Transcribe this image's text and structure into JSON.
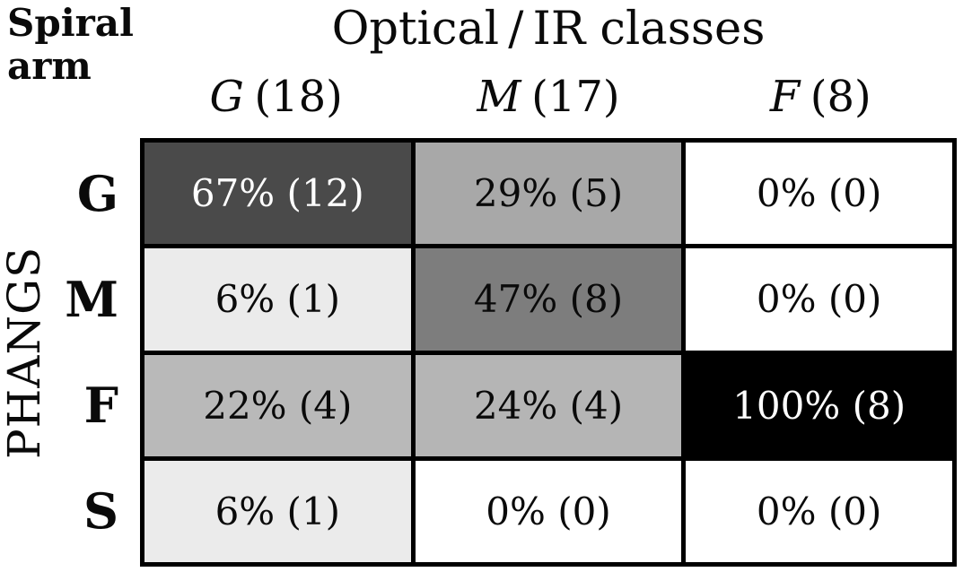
{
  "chart_data": {
    "type": "heatmap",
    "corner_label": "Spiral arm",
    "col_axis_title": "Optical / IR classes",
    "row_axis_title": "PHANGS",
    "columns": [
      {
        "letter": "G",
        "count_label": "(18)",
        "label": "G (18)",
        "total": 18
      },
      {
        "letter": "M",
        "count_label": "(17)",
        "label": "M (17)",
        "total": 17
      },
      {
        "letter": "F",
        "count_label": "(8)",
        "label": "F (8)",
        "total": 8
      }
    ],
    "rows": [
      {
        "label": "G"
      },
      {
        "label": "M"
      },
      {
        "label": "F"
      },
      {
        "label": "S"
      }
    ],
    "values_percent": [
      [
        67,
        29,
        0
      ],
      [
        6,
        47,
        0
      ],
      [
        22,
        24,
        100
      ],
      [
        6,
        0,
        0
      ]
    ],
    "counts": [
      [
        12,
        5,
        0
      ],
      [
        1,
        8,
        0
      ],
      [
        4,
        4,
        8
      ],
      [
        1,
        0,
        0
      ]
    ],
    "cells": [
      [
        {
          "label": "67% (12)",
          "percent": 67,
          "count": 12,
          "bg": "#4a4a4a",
          "fg": "#ffffff"
        },
        {
          "label": "29% (5)",
          "percent": 29,
          "count": 5,
          "bg": "#a8a8a8",
          "fg": "#0a0a0a"
        },
        {
          "label": "0% (0)",
          "percent": 0,
          "count": 0,
          "bg": "#ffffff",
          "fg": "#0a0a0a"
        }
      ],
      [
        {
          "label": "6% (1)",
          "percent": 6,
          "count": 1,
          "bg": "#ebebeb",
          "fg": "#0a0a0a"
        },
        {
          "label": "47% (8)",
          "percent": 47,
          "count": 8,
          "bg": "#7d7d7d",
          "fg": "#0a0a0a"
        },
        {
          "label": "0% (0)",
          "percent": 0,
          "count": 0,
          "bg": "#ffffff",
          "fg": "#0a0a0a"
        }
      ],
      [
        {
          "label": "22% (4)",
          "percent": 22,
          "count": 4,
          "bg": "#b9b9b9",
          "fg": "#0a0a0a"
        },
        {
          "label": "24% (4)",
          "percent": 24,
          "count": 4,
          "bg": "#b5b5b5",
          "fg": "#0a0a0a"
        },
        {
          "label": "100% (8)",
          "percent": 100,
          "count": 8,
          "bg": "#000000",
          "fg": "#ffffff"
        }
      ],
      [
        {
          "label": "6% (1)",
          "percent": 6,
          "count": 1,
          "bg": "#ebebeb",
          "fg": "#0a0a0a"
        },
        {
          "label": "0% (0)",
          "percent": 0,
          "count": 0,
          "bg": "#ffffff",
          "fg": "#0a0a0a"
        },
        {
          "label": "0% (0)",
          "percent": 0,
          "count": 0,
          "bg": "#ffffff",
          "fg": "#0a0a0a"
        }
      ]
    ],
    "layout": {
      "grid": "4 rows x 3 cols",
      "legend": "none",
      "shading_rule": "darker cell = higher percentage",
      "border_color": "#000000"
    }
  }
}
